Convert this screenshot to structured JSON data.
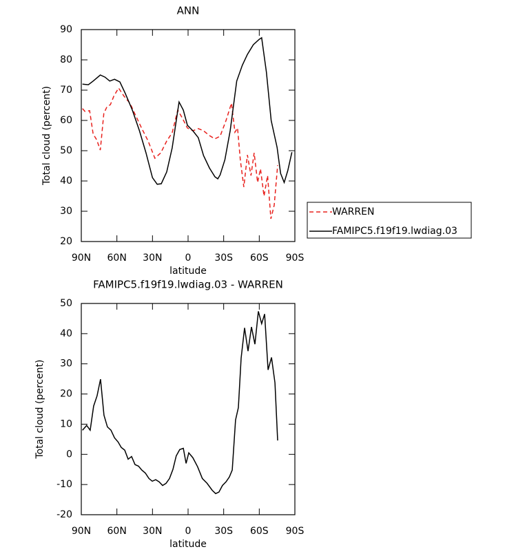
{
  "chart_data": [
    {
      "type": "line",
      "title": "ANN",
      "xlabel": "latitude",
      "ylabel": "Total cloud (percent)",
      "xlim": [
        90,
        -90
      ],
      "xticks": [
        {
          "value": 90,
          "label": "90N"
        },
        {
          "value": 60,
          "label": "60N"
        },
        {
          "value": 30,
          "label": "30N"
        },
        0,
        {
          "value": -30,
          "label": "30S"
        },
        {
          "value": -60,
          "label": "60S"
        },
        {
          "value": -90,
          "label": "90S"
        }
      ],
      "ylim": [
        20,
        90
      ],
      "yticks": [
        20,
        30,
        40,
        50,
        60,
        70,
        80,
        90
      ],
      "legend": "right",
      "series": [
        {
          "name": "WARREN",
          "color": "#e8201c",
          "linestyle": "dashed",
          "x": [
            89,
            87,
            83,
            80,
            77,
            74,
            71,
            68.4,
            65.5,
            62.6,
            58.6,
            54,
            49,
            45,
            39.5,
            33.7,
            28,
            23,
            18,
            13.4,
            8.7,
            5.3,
            0.6,
            -4,
            -8.6,
            -13,
            -18,
            -22.6,
            -27,
            -32,
            -36.6,
            -39.5,
            -41.7,
            -44,
            -47,
            -50,
            -53,
            -55.7,
            -58.6,
            -61,
            -64,
            -67,
            -69.8,
            -72.6,
            -75.5
          ],
          "values": [
            63.9,
            63,
            63.2,
            55.5,
            53.6,
            50.2,
            62.3,
            64.5,
            65.2,
            68,
            70.7,
            68,
            65.7,
            62.3,
            57.7,
            53.2,
            47.5,
            49.3,
            53.2,
            55.9,
            63.4,
            61.1,
            57.5,
            56.6,
            57.3,
            56.6,
            55,
            53.9,
            54.8,
            60,
            65.7,
            56.1,
            57.5,
            47,
            38,
            48.6,
            41.8,
            49.3,
            39.5,
            44,
            35,
            41.8,
            27.5,
            32,
            45.2
          ]
        },
        {
          "name": "FAMIPC5.f19f19.lwdiag.03",
          "color": "#000000",
          "linestyle": "solid",
          "x": [
            89,
            84,
            80,
            74,
            70,
            66,
            62,
            57.5,
            53,
            47,
            41,
            35.5,
            30,
            26,
            22.6,
            18,
            13.4,
            7.6,
            4,
            0.6,
            -4,
            -8.6,
            -13,
            -18,
            -22.6,
            -25,
            -27,
            -31,
            -35.5,
            -41,
            -45.7,
            -50,
            -55,
            -60,
            -62,
            -66,
            -70,
            -75,
            -78,
            -81,
            -84,
            -87.5
          ],
          "values": [
            72,
            71.8,
            73,
            75,
            74.3,
            73,
            73.6,
            72.7,
            69,
            63.4,
            56.6,
            49.3,
            41.1,
            38.9,
            39.1,
            43,
            50.9,
            66.1,
            63.4,
            58.4,
            56.6,
            54.3,
            48.4,
            44.3,
            41.4,
            40.7,
            42,
            47,
            56.6,
            73,
            78.2,
            81.8,
            85,
            86.8,
            87.3,
            75.9,
            60,
            51.1,
            42.5,
            39.5,
            43.4,
            49.5
          ]
        }
      ]
    },
    {
      "type": "line",
      "title": "FAMIPC5.f19f19.lwdiag.03 - WARREN",
      "xlabel": "latitude",
      "ylabel": "Total cloud (percent)",
      "xlim": [
        90,
        -90
      ],
      "xticks": [
        {
          "value": 90,
          "label": "90N"
        },
        {
          "value": 60,
          "label": "60N"
        },
        {
          "value": 30,
          "label": "30N"
        },
        0,
        {
          "value": -30,
          "label": "30S"
        },
        {
          "value": -60,
          "label": "60S"
        },
        {
          "value": -90,
          "label": "90S"
        }
      ],
      "ylim": [
        -20,
        50
      ],
      "yticks": [
        -20,
        -10,
        0,
        10,
        20,
        30,
        40,
        50
      ],
      "color": "#000000",
      "x": [
        89,
        85.5,
        82.5,
        79.6,
        76.7,
        73.8,
        70.9,
        68,
        65,
        62,
        59,
        56.3,
        53.4,
        50.5,
        47.6,
        44.7,
        41.8,
        39,
        36,
        33,
        30.2,
        27.3,
        24.4,
        21.5,
        18.6,
        15.7,
        12.8,
        10,
        7,
        4,
        1.7,
        -0.6,
        -4,
        -8,
        -12,
        -16,
        -20.3,
        -23.2,
        -26,
        -29,
        -32,
        -34.8,
        -37.2,
        -40,
        -42.4,
        -44.7,
        -47.6,
        -50.5,
        -53.4,
        -56.3,
        -59.2,
        -62,
        -64.5,
        -67.4,
        -70.3,
        -73.2,
        -75.5
      ],
      "values": [
        8,
        9.6,
        8,
        16,
        19.4,
        24.9,
        13,
        9.1,
        8,
        5.5,
        4.1,
        2.3,
        1.4,
        -1.6,
        -0.7,
        -3.4,
        -3.9,
        -5.2,
        -6.2,
        -8,
        -8.9,
        -8.4,
        -9.1,
        -10.3,
        -9.6,
        -8,
        -5,
        -0.5,
        1.6,
        2,
        -3,
        0.5,
        -1.1,
        -4.1,
        -8,
        -9.6,
        -11.9,
        -13,
        -12.5,
        -10.3,
        -9.1,
        -7.5,
        -5.2,
        11.4,
        15.5,
        31.9,
        41.9,
        34.2,
        42.2,
        36.5,
        47.4,
        43.3,
        46.5,
        28,
        32.1,
        23.7,
        4.6
      ]
    }
  ]
}
